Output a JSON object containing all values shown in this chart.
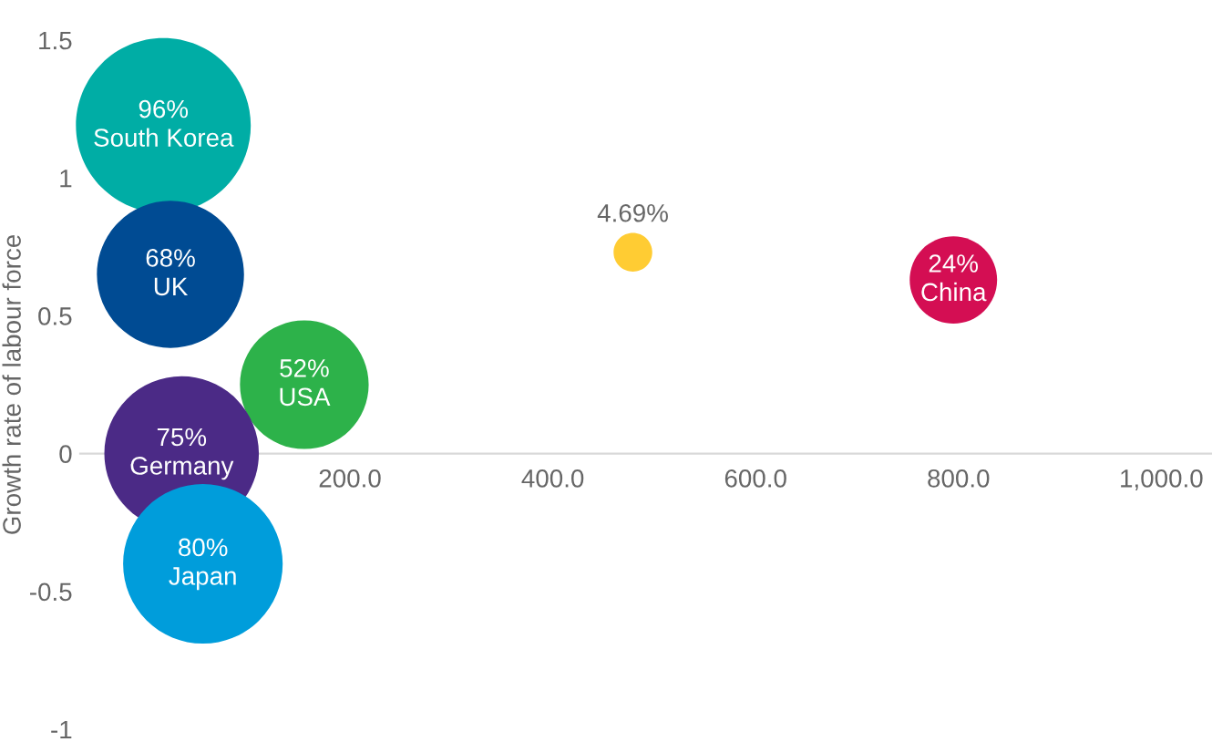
{
  "chart_data": {
    "type": "bubble",
    "ylabel": "Growth rate of labour force",
    "xlim": [
      -66,
      1050
    ],
    "ylim": [
      -1,
      1.5
    ],
    "xticks": [
      {
        "value": 200,
        "label": "200.0"
      },
      {
        "value": 400,
        "label": "400.0"
      },
      {
        "value": 600,
        "label": "600.0"
      },
      {
        "value": 800,
        "label": "800.0"
      },
      {
        "value": 1000,
        "label": "1,000.0"
      }
    ],
    "yticks": [
      -1,
      -0.5,
      0,
      0.5,
      1,
      1.5
    ],
    "grid": false,
    "legend": false,
    "series": [
      {
        "name": "South Korea",
        "color": "#00ada5",
        "x": [
          16
        ],
        "values": [
          1.19
        ],
        "sizes": [
          1
        ]
      },
      {
        "name": "UK",
        "color": "#004b93",
        "x": [
          23
        ],
        "values": [
          0.65
        ],
        "sizes": [
          0.708
        ]
      },
      {
        "name": "USA",
        "color": "#2db24a",
        "x": [
          155
        ],
        "values": [
          0.25
        ],
        "sizes": [
          0.542
        ]
      },
      {
        "name": "Germany",
        "color": "#4b2a86",
        "x": [
          34
        ],
        "values": [
          0.0
        ],
        "sizes": [
          0.781
        ]
      },
      {
        "name": "Japan",
        "color": "#009ddb",
        "x": [
          55
        ],
        "values": [
          -0.4
        ],
        "sizes": [
          0.833
        ]
      },
      {
        "color": "#ffcc33",
        "x": [
          479
        ],
        "values": [
          0.73
        ],
        "sizes": [
          0.049
        ]
      },
      {
        "name": "China",
        "color": "#d40e53",
        "x": [
          795
        ],
        "values": [
          0.63
        ],
        "sizes": [
          0.25
        ]
      }
    ],
    "annotations": [
      {
        "text": "96%",
        "x": 16,
        "y": 1.19
      },
      {
        "text": "68%",
        "x": 23,
        "y": 0.65
      },
      {
        "text": "52%",
        "x": 155,
        "y": 0.25
      },
      {
        "text": "75%",
        "x": 34,
        "y": 0.0
      },
      {
        "text": "80%",
        "x": 55,
        "y": -0.4
      },
      {
        "text": "4.69%",
        "x": 479,
        "y": 0.73
      },
      {
        "text": "24%",
        "x": 795,
        "y": 0.63
      }
    ]
  }
}
